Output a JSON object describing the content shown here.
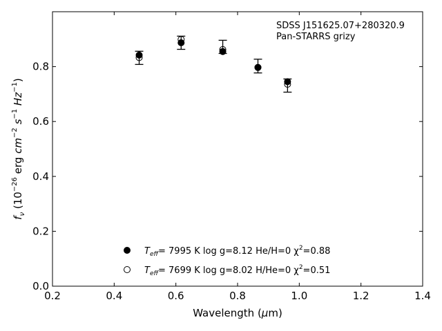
{
  "chart_data": {
    "type": "scatter",
    "annotation": [
      "SDSS J151625.07+280320.9",
      "Pan-STARRS grizy"
    ],
    "xlabel": "Wavelength",
    "xlabel_unit": "(μm)",
    "ylabel": "f_ν (10^-26 erg cm^-2 s^-1 Hz^-1)",
    "xlim": [
      0.2,
      1.4
    ],
    "ylim": [
      0.0,
      1.0
    ],
    "xticks": [
      "0.2",
      "0.4",
      "0.6",
      "0.8",
      "1.0",
      "1.2",
      "1.4"
    ],
    "yticks": [
      "0.0",
      "0.2",
      "0.4",
      "0.6",
      "0.8"
    ],
    "observed": {
      "x": [
        0.481,
        0.617,
        0.752,
        0.866,
        0.962
      ],
      "y": [
        0.832,
        0.887,
        0.872,
        0.802,
        0.731
      ],
      "yerr": [
        0.024,
        0.024,
        0.024,
        0.025,
        0.024
      ]
    },
    "series": [
      {
        "label_text": "T_eff=  7995 K  log g=8.12  He/H=0  χ²=0.88",
        "marker": "filled-circle",
        "x": [
          0.481,
          0.617,
          0.752,
          0.866,
          0.962
        ],
        "y": [
          0.842,
          0.887,
          0.855,
          0.797,
          0.745
        ]
      },
      {
        "label_text": "T_eff=  7699 K  log g=8.02  H/He=0  χ²=0.51",
        "marker": "open-circle",
        "x": [
          0.481,
          0.617,
          0.752,
          0.866,
          0.962
        ],
        "y": [
          0.833,
          0.899,
          0.862,
          0.797,
          0.736
        ]
      }
    ],
    "legend_placement": "lower-center",
    "grid": false,
    "colors": {
      "marker": "#000000",
      "errorbar": "#000000",
      "axes": "#000000"
    }
  },
  "legend": [
    {
      "prefix": "T",
      "sub": "eff",
      "main": "=  7995 K  log g=8.12  He/H=0  χ",
      "sup": "2",
      "tail": "=0.88"
    },
    {
      "prefix": "T",
      "sub": "eff",
      "main": "=  7699 K  log g=8.02  H/He=0  χ",
      "sup": "2",
      "tail": "=0.51"
    }
  ],
  "ylabel_parts": {
    "f": "f",
    "nu": "ν",
    "a": " (10",
    "e1": "−26",
    "b": " erg ",
    "cm": "cm",
    "e2": "−2",
    "c": " ",
    "s": "s",
    "e3": "−1",
    "d": " ",
    "hz": "Hz",
    "e4": "−1",
    "close": ")"
  },
  "xlabel_parts": {
    "a": "Wavelength (",
    "mu": "μ",
    "b": "m)"
  }
}
